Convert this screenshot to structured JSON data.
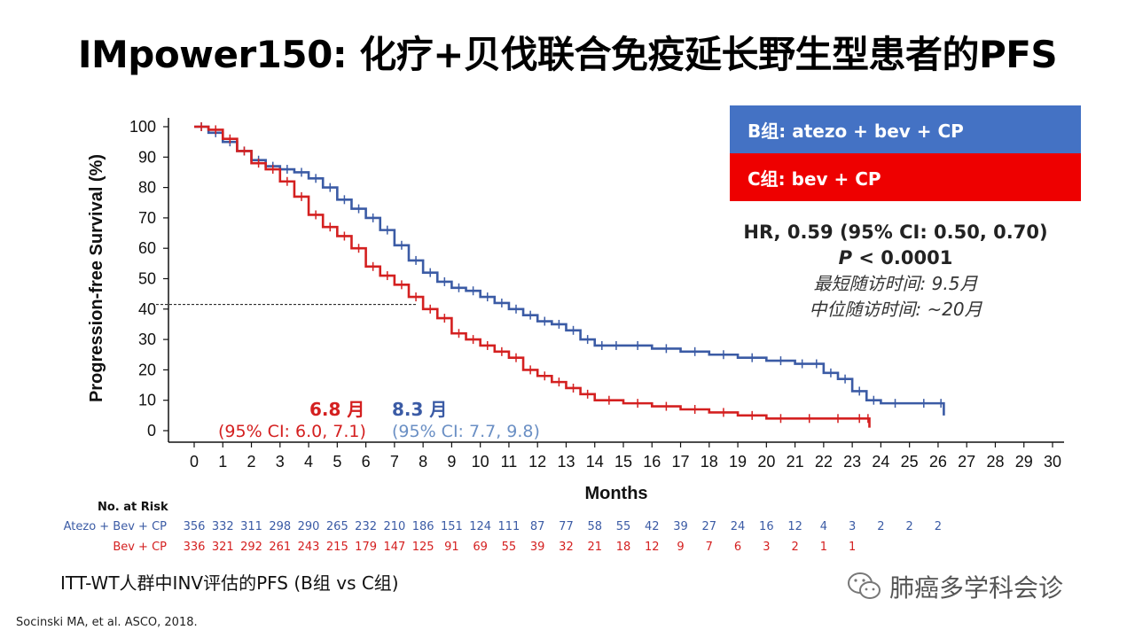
{
  "title": "IMpower150: 化疗+贝伐联合免疫延长野生型患者的PFS",
  "legend": {
    "b_label": "B组: atezo + bev + CP",
    "c_label": "C组: bev + CP",
    "b_color": "#4472c4",
    "c_color": "#ee0000"
  },
  "stats": {
    "hr": "HR, 0.59 (95% CI: 0.50, 0.70)",
    "p_prefix": "P",
    "p_rest": " < 0.0001",
    "min_followup": "最短随访时间: 9.5月",
    "median_followup": "中位随访时间: ~20月"
  },
  "medians": {
    "c_median": "6.8 月",
    "c_ci": "(95% CI: 6.0, 7.1)",
    "b_median": "8.3 月",
    "b_ci": "(95% CI: 7.7, 9.8)"
  },
  "risk_table": {
    "title": "No. at Risk",
    "rows": [
      {
        "label": "Atezo + Bev + CP",
        "color": "#3b5ba5",
        "values": [
          "356",
          "332",
          "311",
          "298",
          "290",
          "265",
          "232",
          "210",
          "186",
          "151",
          "124",
          "111",
          "87",
          "77",
          "58",
          "55",
          "42",
          "39",
          "27",
          "24",
          "16",
          "12",
          "4",
          "3",
          "2",
          "2",
          "2"
        ]
      },
      {
        "label": "Bev + CP",
        "color": "#d42020",
        "values": [
          "336",
          "321",
          "292",
          "261",
          "243",
          "215",
          "179",
          "147",
          "125",
          "91",
          "69",
          "55",
          "39",
          "32",
          "21",
          "18",
          "12",
          "9",
          "7",
          "6",
          "3",
          "2",
          "1",
          "1"
        ]
      }
    ]
  },
  "footnote": "ITT-WT人群中INV评估的PFS (B组 vs C组)",
  "source": "Socinski MA, et al. ASCO, 2018.",
  "watermark": "肺癌多学科会诊",
  "chart_data": {
    "type": "line",
    "xlabel": "Months",
    "ylabel": "Progression-free Survival (%)",
    "xlim": [
      0,
      30
    ],
    "ylim": [
      0,
      100
    ],
    "xticks": [
      0,
      1,
      2,
      3,
      4,
      5,
      6,
      7,
      8,
      9,
      10,
      11,
      12,
      13,
      14,
      15,
      16,
      17,
      18,
      19,
      20,
      21,
      22,
      23,
      24,
      25,
      26,
      27,
      28,
      29,
      30
    ],
    "yticks": [
      0,
      10,
      20,
      30,
      40,
      50,
      60,
      70,
      80,
      90,
      100
    ],
    "reference_line_y": 41.5,
    "series": [
      {
        "name": "B组: atezo + bev + CP",
        "color": "#3b5ba5",
        "x": [
          0,
          0.5,
          1,
          1.5,
          2,
          2.5,
          3,
          3.5,
          4,
          4.5,
          5,
          5.5,
          6,
          6.5,
          7,
          7.5,
          8,
          8.5,
          9,
          9.5,
          10,
          10.5,
          11,
          11.5,
          12,
          12.5,
          13,
          13.5,
          14,
          14.5,
          15,
          16,
          17,
          18,
          19,
          20,
          21,
          21.5,
          22,
          22.5,
          23,
          23.5,
          24,
          25,
          26,
          26.2
        ],
        "y": [
          100,
          98,
          95,
          92,
          89,
          87,
          86,
          85,
          83,
          80,
          76,
          73,
          70,
          66,
          61,
          56,
          52,
          49,
          47,
          46,
          44,
          42,
          40,
          38,
          36,
          35,
          33,
          30,
          28,
          28,
          28,
          27,
          26,
          25,
          24,
          23,
          22,
          22,
          19,
          17,
          13,
          10,
          9,
          9,
          9,
          5
        ]
      },
      {
        "name": "C组: bev + CP",
        "color": "#d42020",
        "x": [
          0,
          0.5,
          1,
          1.5,
          2,
          2.5,
          3,
          3.5,
          4,
          4.5,
          5,
          5.5,
          6,
          6.5,
          7,
          7.5,
          8,
          8.5,
          9,
          9.5,
          10,
          10.5,
          11,
          11.5,
          12,
          12.5,
          13,
          13.5,
          14,
          15,
          16,
          17,
          18,
          19,
          20,
          21,
          22,
          23,
          23.5,
          23.6
        ],
        "y": [
          100,
          99,
          96,
          92,
          88,
          86,
          82,
          77,
          71,
          67,
          64,
          60,
          54,
          51,
          48,
          44,
          40,
          37,
          32,
          30,
          28,
          26,
          24,
          20,
          18,
          16,
          14,
          12,
          10,
          9,
          8,
          7,
          6,
          5,
          4,
          4,
          4,
          4,
          4,
          1
        ]
      }
    ]
  }
}
